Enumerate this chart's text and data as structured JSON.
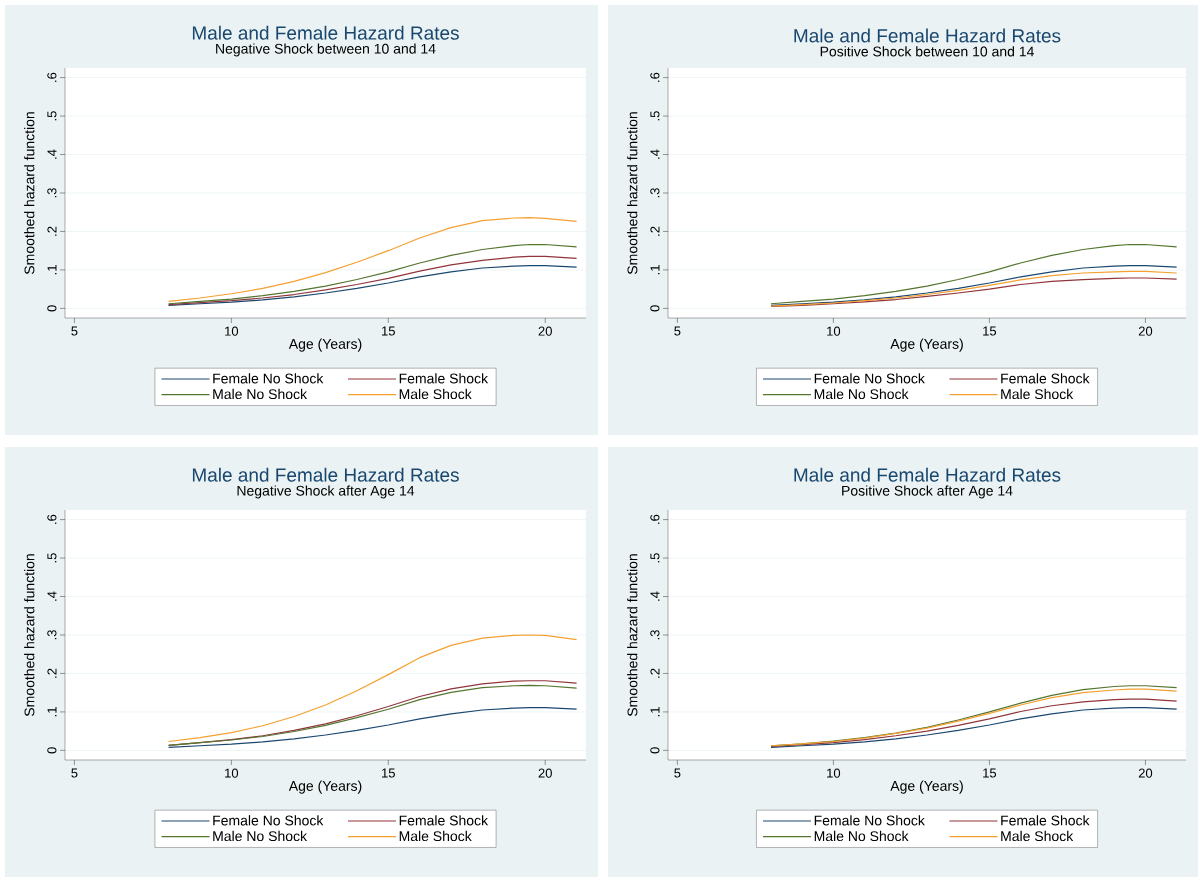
{
  "chart_data": [
    {
      "type": "line",
      "title": "Male and Female Hazard Rates",
      "subtitle": "Negative Shock between 10 and 14",
      "xlabel": "Age (Years)",
      "ylabel": "Smoothed hazard function",
      "x": [
        8,
        9,
        10,
        11,
        12,
        13,
        14,
        15,
        16,
        17,
        18,
        19,
        19.5,
        20,
        21
      ],
      "series": [
        {
          "name": "Female No Shock",
          "color": "#1a476f",
          "values": [
            0.008,
            0.012,
            0.016,
            0.022,
            0.03,
            0.04,
            0.052,
            0.066,
            0.082,
            0.095,
            0.105,
            0.11,
            0.111,
            0.111,
            0.107
          ]
        },
        {
          "name": "Female Shock",
          "color": "#90353b",
          "values": [
            0.01,
            0.015,
            0.02,
            0.027,
            0.036,
            0.048,
            0.062,
            0.078,
            0.097,
            0.113,
            0.125,
            0.133,
            0.135,
            0.135,
            0.13
          ]
        },
        {
          "name": "Male No Shock",
          "color": "#55752f",
          "values": [
            0.012,
            0.018,
            0.024,
            0.033,
            0.044,
            0.058,
            0.075,
            0.095,
            0.118,
            0.138,
            0.153,
            0.163,
            0.166,
            0.166,
            0.16
          ]
        },
        {
          "name": "Male Shock",
          "color": "#f5a031",
          "values": [
            0.018,
            0.027,
            0.038,
            0.052,
            0.07,
            0.093,
            0.12,
            0.15,
            0.183,
            0.21,
            0.228,
            0.235,
            0.236,
            0.234,
            0.226
          ]
        }
      ],
      "xlim": [
        4.7,
        21.3
      ],
      "ylim": [
        -0.025,
        0.625
      ],
      "xticks": [
        5,
        10,
        15,
        20
      ],
      "yticks": [
        0,
        {
          "value": 0.1,
          "label": ".1"
        },
        {
          "value": 0.2,
          "label": ".2"
        },
        {
          "value": 0.3,
          "label": ".3"
        },
        {
          "value": 0.4,
          "label": ".4"
        },
        {
          "value": 0.5,
          "label": ".5"
        },
        {
          "value": 0.6,
          "label": ".6"
        }
      ],
      "grid": "y",
      "legend": "bottom"
    },
    {
      "type": "line",
      "title": "Male and Female Hazard Rates",
      "subtitle": "Positive Shock between 10 and 14",
      "xlabel": "Age (Years)",
      "ylabel": "Smoothed hazard function",
      "x": [
        8,
        9,
        10,
        11,
        12,
        13,
        14,
        15,
        16,
        17,
        18,
        19,
        19.5,
        20,
        21
      ],
      "series": [
        {
          "name": "Female No Shock",
          "color": "#1a476f",
          "values": [
            0.008,
            0.012,
            0.016,
            0.022,
            0.03,
            0.04,
            0.052,
            0.066,
            0.082,
            0.095,
            0.105,
            0.11,
            0.111,
            0.111,
            0.107
          ]
        },
        {
          "name": "Female Shock",
          "color": "#90353b",
          "values": [
            0.005,
            0.008,
            0.012,
            0.017,
            0.023,
            0.031,
            0.04,
            0.05,
            0.062,
            0.07,
            0.075,
            0.078,
            0.079,
            0.079,
            0.076
          ]
        },
        {
          "name": "Male No Shock",
          "color": "#55752f",
          "values": [
            0.012,
            0.018,
            0.024,
            0.033,
            0.044,
            0.058,
            0.075,
            0.095,
            0.118,
            0.138,
            0.153,
            0.163,
            0.166,
            0.166,
            0.16
          ]
        },
        {
          "name": "Male Shock",
          "color": "#f5a031",
          "values": [
            0.006,
            0.01,
            0.014,
            0.02,
            0.027,
            0.036,
            0.047,
            0.06,
            0.074,
            0.085,
            0.092,
            0.095,
            0.096,
            0.096,
            0.092
          ]
        }
      ],
      "xlim": [
        4.7,
        21.3
      ],
      "ylim": [
        -0.025,
        0.625
      ],
      "xticks": [
        5,
        10,
        15,
        20
      ],
      "yticks": [
        0,
        {
          "value": 0.1,
          "label": ".1"
        },
        {
          "value": 0.2,
          "label": ".2"
        },
        {
          "value": 0.3,
          "label": ".3"
        },
        {
          "value": 0.4,
          "label": ".4"
        },
        {
          "value": 0.5,
          "label": ".5"
        },
        {
          "value": 0.6,
          "label": ".6"
        }
      ],
      "grid": "y",
      "legend": "bottom"
    },
    {
      "type": "line",
      "title": "Male and Female Hazard Rates",
      "subtitle": "Negative Shock after Age 14",
      "xlabel": "Age (Years)",
      "ylabel": "Smoothed hazard function",
      "x": [
        8,
        9,
        10,
        11,
        12,
        13,
        14,
        15,
        16,
        17,
        18,
        19,
        19.5,
        20,
        21
      ],
      "series": [
        {
          "name": "Female No Shock",
          "color": "#1a476f",
          "values": [
            0.008,
            0.012,
            0.016,
            0.022,
            0.03,
            0.04,
            0.052,
            0.066,
            0.082,
            0.095,
            0.105,
            0.11,
            0.111,
            0.111,
            0.107
          ]
        },
        {
          "name": "Female Shock",
          "color": "#90353b",
          "values": [
            0.013,
            0.02,
            0.028,
            0.038,
            0.052,
            0.069,
            0.09,
            0.114,
            0.14,
            0.16,
            0.173,
            0.18,
            0.181,
            0.181,
            0.175
          ]
        },
        {
          "name": "Male No Shock",
          "color": "#55752f",
          "values": [
            0.013,
            0.02,
            0.027,
            0.036,
            0.049,
            0.065,
            0.085,
            0.107,
            0.132,
            0.151,
            0.163,
            0.168,
            0.169,
            0.168,
            0.162
          ]
        },
        {
          "name": "Male Shock",
          "color": "#f5a031",
          "values": [
            0.023,
            0.033,
            0.046,
            0.064,
            0.088,
            0.118,
            0.155,
            0.197,
            0.241,
            0.273,
            0.292,
            0.299,
            0.3,
            0.299,
            0.288
          ]
        }
      ],
      "xlim": [
        4.7,
        21.3
      ],
      "ylim": [
        -0.025,
        0.625
      ],
      "xticks": [
        5,
        10,
        15,
        20
      ],
      "yticks": [
        0,
        {
          "value": 0.1,
          "label": ".1"
        },
        {
          "value": 0.2,
          "label": ".2"
        },
        {
          "value": 0.3,
          "label": ".3"
        },
        {
          "value": 0.4,
          "label": ".4"
        },
        {
          "value": 0.5,
          "label": ".5"
        },
        {
          "value": 0.6,
          "label": ".6"
        }
      ],
      "grid": "y",
      "legend": "bottom"
    },
    {
      "type": "line",
      "title": "Male and Female Hazard Rates",
      "subtitle": "Positive Shock after Age 14",
      "xlabel": "Age (Years)",
      "ylabel": "Smoothed hazard function",
      "x": [
        8,
        9,
        10,
        11,
        12,
        13,
        14,
        15,
        16,
        17,
        18,
        19,
        19.5,
        20,
        21
      ],
      "series": [
        {
          "name": "Female No Shock",
          "color": "#1a476f",
          "values": [
            0.008,
            0.012,
            0.016,
            0.022,
            0.03,
            0.04,
            0.052,
            0.066,
            0.082,
            0.095,
            0.105,
            0.11,
            0.111,
            0.111,
            0.107
          ]
        },
        {
          "name": "Female Shock",
          "color": "#90353b",
          "values": [
            0.01,
            0.015,
            0.02,
            0.028,
            0.038,
            0.05,
            0.065,
            0.082,
            0.101,
            0.116,
            0.126,
            0.132,
            0.133,
            0.133,
            0.128
          ]
        },
        {
          "name": "Male No Shock",
          "color": "#55752f",
          "values": [
            0.012,
            0.017,
            0.024,
            0.033,
            0.045,
            0.06,
            0.079,
            0.1,
            0.123,
            0.143,
            0.158,
            0.166,
            0.168,
            0.168,
            0.163
          ]
        },
        {
          "name": "Male Shock",
          "color": "#f5a031",
          "values": [
            0.012,
            0.017,
            0.023,
            0.032,
            0.044,
            0.058,
            0.076,
            0.096,
            0.118,
            0.137,
            0.15,
            0.157,
            0.159,
            0.159,
            0.154
          ]
        }
      ],
      "xlim": [
        4.7,
        21.3
      ],
      "ylim": [
        -0.025,
        0.625
      ],
      "xticks": [
        5,
        10,
        15,
        20
      ],
      "yticks": [
        0,
        {
          "value": 0.1,
          "label": ".1"
        },
        {
          "value": 0.2,
          "label": ".2"
        },
        {
          "value": 0.3,
          "label": ".3"
        },
        {
          "value": 0.4,
          "label": ".4"
        },
        {
          "value": 0.5,
          "label": ".5"
        },
        {
          "value": 0.6,
          "label": ".6"
        }
      ],
      "grid": "y",
      "legend": "bottom"
    }
  ]
}
